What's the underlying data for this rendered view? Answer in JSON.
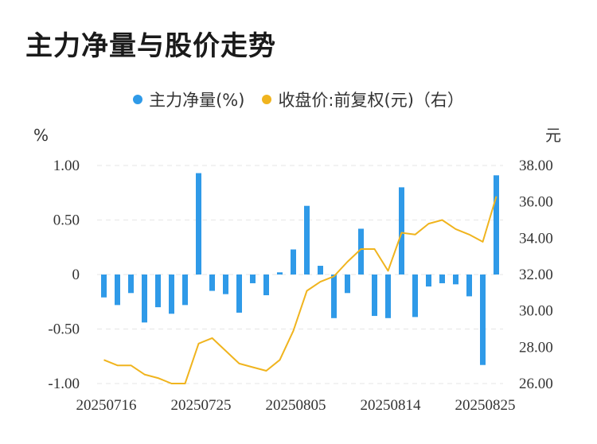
{
  "title": "主力净量与股价走势",
  "legend": [
    {
      "label": "主力净量(%)",
      "color": "#2f9ae8"
    },
    {
      "label": "收盘价:前复权(元)（右）",
      "color": "#f0b41e"
    }
  ],
  "chart_data": {
    "type": "bar+line",
    "left_unit": "%",
    "right_unit": "元",
    "left_ticks": [
      "1.00",
      "0.50",
      "0",
      "-0.50",
      "-1.00"
    ],
    "right_ticks": [
      "38.00",
      "36.00",
      "34.00",
      "32.00",
      "30.00",
      "28.00",
      "26.00"
    ],
    "left_range": [
      -1.0,
      1.0
    ],
    "right_range": [
      26.0,
      38.0
    ],
    "x_tick_labels": [
      "20250716",
      "20250725",
      "20250805",
      "20250814",
      "20250825"
    ],
    "x_tick_indices": [
      0,
      7,
      14,
      21,
      28
    ],
    "dates": [
      "20250716",
      "20250717",
      "20250718",
      "20250721",
      "20250722",
      "20250723",
      "20250724",
      "20250725",
      "20250728",
      "20250729",
      "20250730",
      "20250731",
      "20250801",
      "20250804",
      "20250805",
      "20250806",
      "20250807",
      "20250808",
      "20250811",
      "20250812",
      "20250813",
      "20250814",
      "20250815",
      "20250818",
      "20250819",
      "20250820",
      "20250821",
      "20250822",
      "20250825",
      "20250826"
    ],
    "series": [
      {
        "name": "主力净量(%)",
        "type": "bar",
        "color": "#2f9ae8",
        "values": [
          -0.21,
          -0.28,
          -0.17,
          -0.44,
          -0.3,
          -0.36,
          -0.28,
          0.93,
          -0.15,
          -0.18,
          -0.35,
          -0.08,
          -0.19,
          0.02,
          0.23,
          0.63,
          0.08,
          -0.4,
          -0.17,
          0.42,
          -0.38,
          -0.4,
          0.8,
          -0.39,
          -0.11,
          -0.08,
          -0.09,
          -0.2,
          -0.83,
          0.91
        ]
      },
      {
        "name": "收盘价:前复权(元)（右）",
        "type": "line",
        "color": "#f0b41e",
        "values": [
          27.3,
          27.0,
          27.0,
          26.5,
          26.3,
          26.0,
          26.0,
          28.2,
          28.5,
          27.8,
          27.1,
          26.9,
          26.7,
          27.3,
          28.9,
          31.1,
          31.6,
          31.9,
          32.7,
          33.4,
          33.4,
          32.2,
          34.3,
          34.2,
          34.8,
          35.0,
          34.5,
          34.2,
          33.8,
          36.3
        ]
      }
    ]
  }
}
